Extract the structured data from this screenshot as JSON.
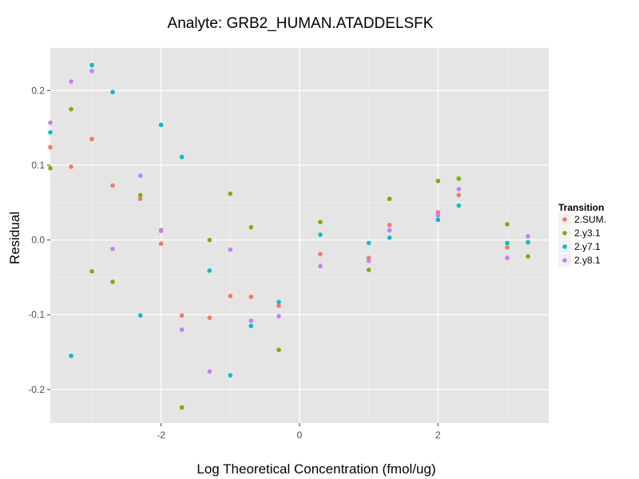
{
  "chart_data": {
    "type": "scatter",
    "title": "Analyte: GRB2_HUMAN.ATADDELSFK",
    "xlabel": "Log Theoretical Concentration (fmol/ug)",
    "ylabel": "Residual",
    "xlim": [
      -3.6,
      3.6
    ],
    "ylim": [
      -0.245,
      0.257
    ],
    "x_major_ticks": [
      -2,
      0,
      2
    ],
    "x_tick_labels": [
      "-2",
      "0",
      "2"
    ],
    "x_minor_ticks": [
      -3,
      -1,
      1,
      3
    ],
    "y_major_ticks": [
      -0.2,
      -0.1,
      0.0,
      0.1,
      0.2
    ],
    "y_tick_labels": [
      "-0.2",
      "-0.1",
      "0.0",
      "0.1",
      "0.2"
    ],
    "y_minor_ticks": [
      -0.15,
      -0.05,
      0.05,
      0.15
    ],
    "grid": true,
    "legend": {
      "title": "Transition",
      "placement": "right"
    },
    "series": [
      {
        "name": "2.SUM.",
        "color": "#F8766D",
        "points": [
          [
            -3.6,
            0.124
          ],
          [
            -3.3,
            0.098
          ],
          [
            -3.0,
            0.135
          ],
          [
            -2.7,
            0.073
          ],
          [
            -2.3,
            0.055
          ],
          [
            -2.0,
            -0.005
          ],
          [
            -1.7,
            -0.101
          ],
          [
            -1.3,
            -0.104
          ],
          [
            -1.0,
            -0.075
          ],
          [
            -0.7,
            -0.076
          ],
          [
            -0.3,
            -0.088
          ],
          [
            0.3,
            -0.019
          ],
          [
            1.0,
            -0.024
          ],
          [
            1.3,
            0.02
          ],
          [
            2.0,
            0.037
          ],
          [
            2.3,
            0.06
          ],
          [
            3.0,
            -0.01
          ],
          [
            3.3,
            -0.003
          ]
        ]
      },
      {
        "name": "2.y3.1",
        "color": "#7CAE00",
        "points": [
          [
            -3.6,
            0.096
          ],
          [
            -3.3,
            0.175
          ],
          [
            -3.0,
            -0.042
          ],
          [
            -2.7,
            -0.056
          ],
          [
            -2.3,
            0.06
          ],
          [
            -2.0,
            0.013
          ],
          [
            -1.7,
            -0.224
          ],
          [
            -1.3,
            0.0
          ],
          [
            -1.0,
            0.062
          ],
          [
            -0.7,
            0.017
          ],
          [
            -0.3,
            -0.147
          ],
          [
            0.3,
            0.024
          ],
          [
            1.0,
            -0.04
          ],
          [
            1.3,
            0.055
          ],
          [
            2.0,
            0.079
          ],
          [
            2.3,
            0.082
          ],
          [
            3.0,
            0.021
          ],
          [
            3.3,
            -0.022
          ]
        ]
      },
      {
        "name": "2.y7.1",
        "color": "#00BFC4",
        "points": [
          [
            -3.6,
            0.144
          ],
          [
            -3.3,
            -0.155
          ],
          [
            -3.0,
            0.234
          ],
          [
            -2.7,
            0.198
          ],
          [
            -2.3,
            -0.101
          ],
          [
            -2.0,
            0.154
          ],
          [
            -1.7,
            0.111
          ],
          [
            -1.3,
            -0.041
          ],
          [
            -1.0,
            -0.181
          ],
          [
            -0.7,
            -0.115
          ],
          [
            -0.3,
            -0.083
          ],
          [
            0.3,
            0.007
          ],
          [
            1.0,
            -0.004
          ],
          [
            1.3,
            0.003
          ],
          [
            2.0,
            0.027
          ],
          [
            2.3,
            0.046
          ],
          [
            3.0,
            -0.004
          ],
          [
            3.3,
            -0.003
          ]
        ]
      },
      {
        "name": "2.y8.1",
        "color": "#C77CFF",
        "points": [
          [
            -3.6,
            0.157
          ],
          [
            -3.3,
            0.212
          ],
          [
            -3.0,
            0.226
          ],
          [
            -2.7,
            -0.012
          ],
          [
            -2.3,
            0.086
          ],
          [
            -2.0,
            0.012
          ],
          [
            -1.7,
            -0.12
          ],
          [
            -1.3,
            -0.176
          ],
          [
            -1.0,
            -0.013
          ],
          [
            -0.7,
            -0.108
          ],
          [
            -0.3,
            -0.102
          ],
          [
            0.3,
            -0.035
          ],
          [
            1.0,
            -0.028
          ],
          [
            1.3,
            0.013
          ],
          [
            2.0,
            0.033
          ],
          [
            2.3,
            0.068
          ],
          [
            3.0,
            -0.024
          ],
          [
            3.3,
            0.005
          ]
        ]
      }
    ]
  }
}
